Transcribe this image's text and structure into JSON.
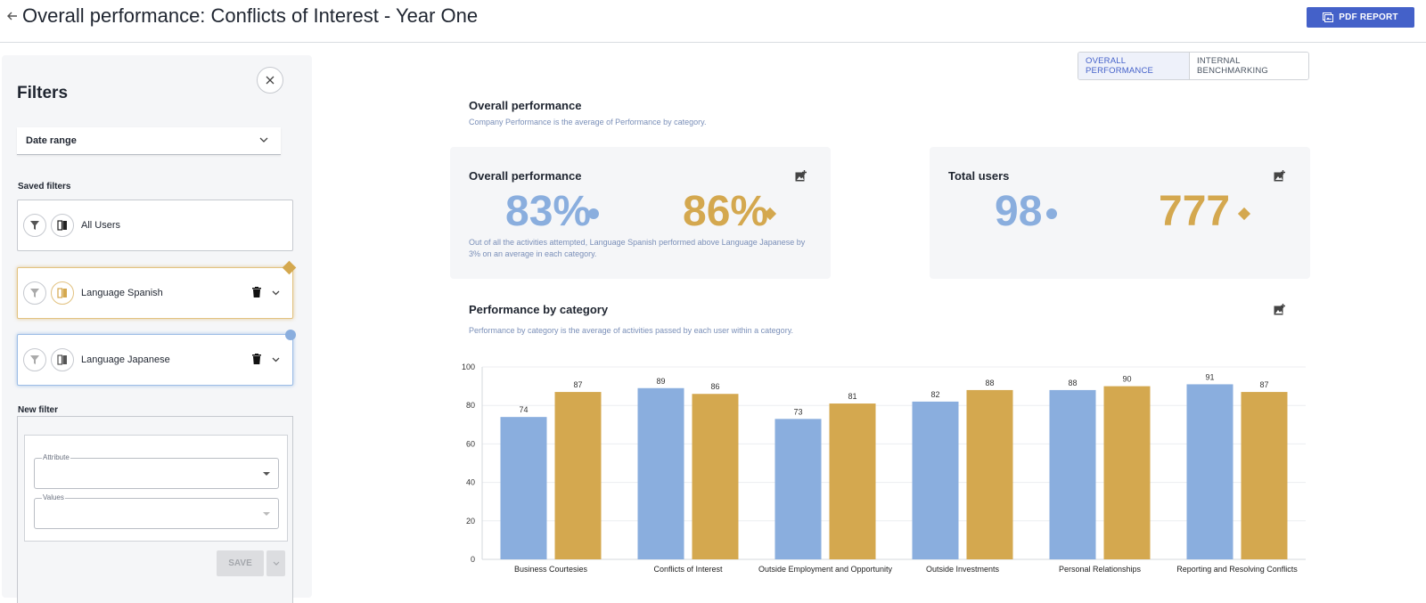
{
  "header": {
    "title": "Overall performance: Conflicts of Interest - Year One",
    "pdf_label": "PDF REPORT"
  },
  "filters": {
    "title": "Filters",
    "date_range_label": "Date range",
    "saved_filters_label": "Saved filters",
    "saved": [
      {
        "name": "All Users"
      },
      {
        "name": "Language Spanish",
        "marker_color": "#d4a84f"
      },
      {
        "name": "Language Japanese",
        "marker_color": "#8aaede"
      }
    ],
    "new_filter_label": "New filter",
    "attribute_label": "Attribute",
    "values_label": "Values",
    "save_label": "SAVE"
  },
  "tabs": [
    {
      "label": "OVERALL PERFORMANCE",
      "active": true
    },
    {
      "label": "INTERNAL BENCHMARKING",
      "active": false
    }
  ],
  "overall": {
    "heading": "Overall performance",
    "subtitle": "Company Performance is the average of Performance by category."
  },
  "kpi_overall": {
    "title": "Overall performance",
    "value_blue": "83%",
    "value_gold": "86%",
    "note": "Out of all the activities attempted, Language Spanish performed above Language Japanese by 3% on an average in each category."
  },
  "kpi_users": {
    "title": "Total users",
    "value_blue": "98",
    "value_gold": "777"
  },
  "by_category": {
    "heading": "Performance by category",
    "subtitle": "Performance by category is the average of activities passed by each user within a category."
  },
  "colors": {
    "blue": "#8aaede",
    "gold": "#d4a84f",
    "accent": "#4461c9"
  },
  "chart_data": {
    "type": "bar",
    "categories": [
      "Business Courtesies",
      "Conflicts of Interest",
      "Outside Employment and Opportunity",
      "Outside Investments",
      "Personal Relationships",
      "Reporting and Resolving Conflicts"
    ],
    "series": [
      {
        "values": [
          74,
          89,
          73,
          82,
          88,
          91
        ],
        "color": "#8aaede"
      },
      {
        "values": [
          87,
          86,
          81,
          88,
          90,
          87
        ],
        "color": "#d4a84f"
      }
    ],
    "ylim": [
      0,
      100
    ],
    "yticks": [
      0,
      20,
      40,
      60,
      80,
      100
    ],
    "grid": true,
    "title": "",
    "xlabel": "",
    "ylabel": ""
  }
}
